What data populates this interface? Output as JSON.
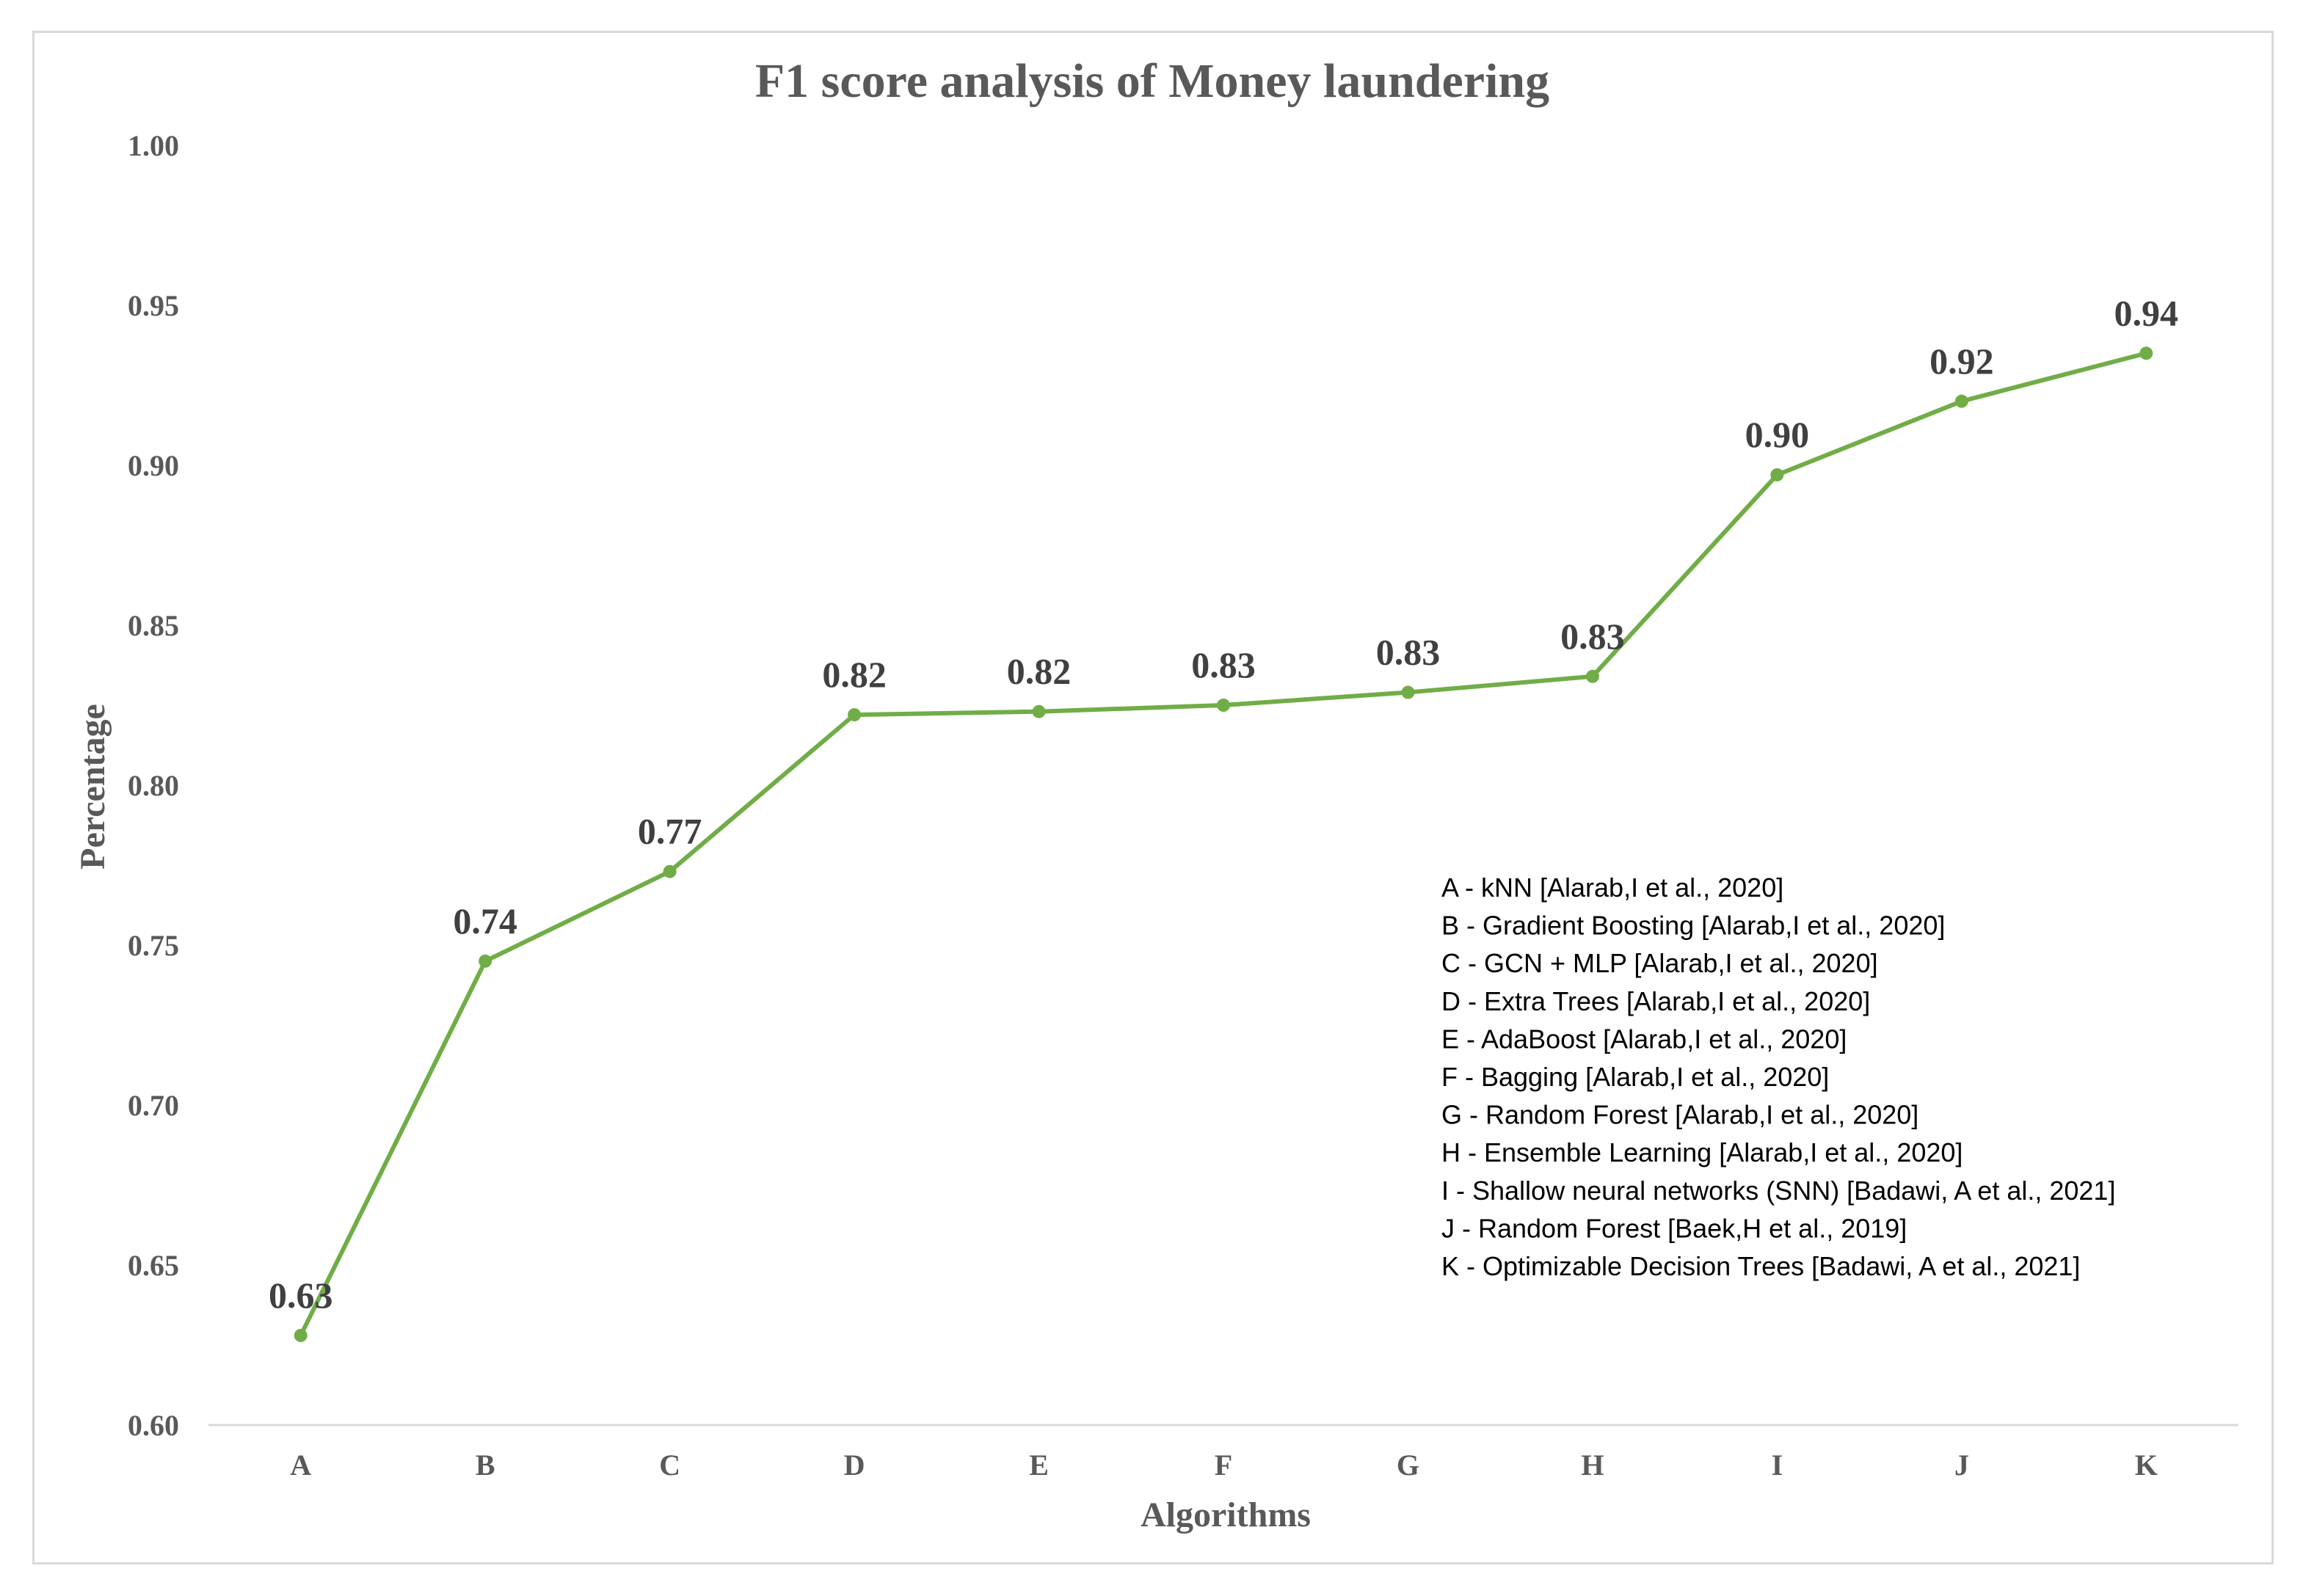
{
  "chart_data": {
    "type": "line",
    "title": "F1 score analysis of Money laundering",
    "xlabel": "Algorithms",
    "ylabel": "Percentage",
    "categories": [
      "A",
      "B",
      "C",
      "D",
      "E",
      "F",
      "G",
      "H",
      "I",
      "J",
      "K"
    ],
    "series": [
      {
        "name": "F1 score",
        "values": [
          0.628,
          0.745,
          0.773,
          0.822,
          0.823,
          0.825,
          0.829,
          0.834,
          0.897,
          0.92,
          0.935
        ],
        "labels": [
          "0.63",
          "0.74",
          "0.77",
          "0.82",
          "0.82",
          "0.83",
          "0.83",
          "0.83",
          "0.90",
          "0.92",
          "0.94"
        ],
        "color": "#70AD47"
      }
    ],
    "ylim": [
      0.6,
      1.0
    ],
    "yticks": [
      "0.60",
      "0.65",
      "0.70",
      "0.75",
      "0.80",
      "0.85",
      "0.90",
      "0.95",
      "1.00"
    ],
    "grid": false,
    "legend_notes": [
      "A - kNN [Alarab,I et al., 2020]",
      "B - Gradient Boosting [Alarab,I et al., 2020]",
      "C - GCN + MLP [Alarab,I et al., 2020]",
      "D - Extra Trees [Alarab,I et al., 2020]",
      "E - AdaBoost [Alarab,I et al., 2020]",
      "F - Bagging [Alarab,I et al., 2020]",
      "G - Random Forest [Alarab,I et al., 2020]",
      "H - Ensemble Learning [Alarab,I et al., 2020]",
      "I - Shallow neural networks (SNN) [Badawi, A et al., 2021]",
      "J - Random Forest [Baek,H et al., 2019]",
      "K - Optimizable Decision Trees [Badawi, A et al., 2021]"
    ],
    "legend_position": "bottom-right"
  }
}
